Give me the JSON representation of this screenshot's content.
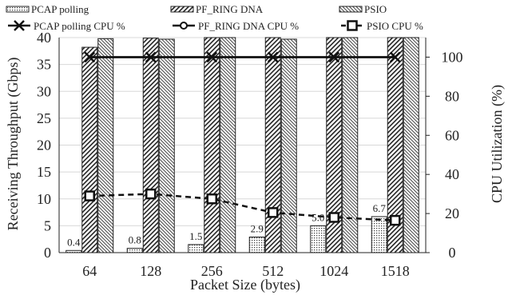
{
  "chart_data": {
    "type": "bar",
    "xlabel": "Packet Size (bytes)",
    "ylabel": "Receiving Throughput (Gbps)",
    "y2label": "CPU Utilization (%)",
    "categories": [
      "64",
      "128",
      "256",
      "512",
      "1024",
      "1518"
    ],
    "ylim": [
      0,
      40
    ],
    "y2lim": [
      0,
      110
    ],
    "yticks": [
      0,
      5,
      10,
      15,
      20,
      25,
      30,
      35,
      40
    ],
    "y2ticks": [
      0,
      20,
      40,
      60,
      80,
      100
    ],
    "grid": "horizontal",
    "legend_position": "top",
    "bar_series": [
      {
        "name": "PCAP polling",
        "values": [
          0.4,
          0.8,
          1.5,
          2.9,
          5.0,
          6.7
        ],
        "labels": [
          "0.4",
          "0.8",
          "1.5",
          "2.9",
          "5.0",
          "6.7"
        ]
      },
      {
        "name": "PF_RING DNA",
        "values": [
          38.2,
          39.9,
          40.0,
          40.0,
          40.0,
          40.0
        ]
      },
      {
        "name": "PSIO",
        "values": [
          39.8,
          39.7,
          40.0,
          39.7,
          40.0,
          40.0
        ]
      }
    ],
    "line_series": [
      {
        "name": "PCAP polling CPU %",
        "values": [
          100,
          100,
          100,
          100,
          100,
          100
        ],
        "marker": "x",
        "style": "solid"
      },
      {
        "name": "PF_RING DNA CPU %",
        "values": [
          100,
          100,
          100,
          100,
          100,
          100
        ],
        "marker": "circle",
        "style": "solid"
      },
      {
        "name": "PSIO CPU %",
        "values": [
          29,
          30,
          27.5,
          20.5,
          18,
          16.5
        ],
        "marker": "square",
        "style": "dashed"
      }
    ]
  }
}
